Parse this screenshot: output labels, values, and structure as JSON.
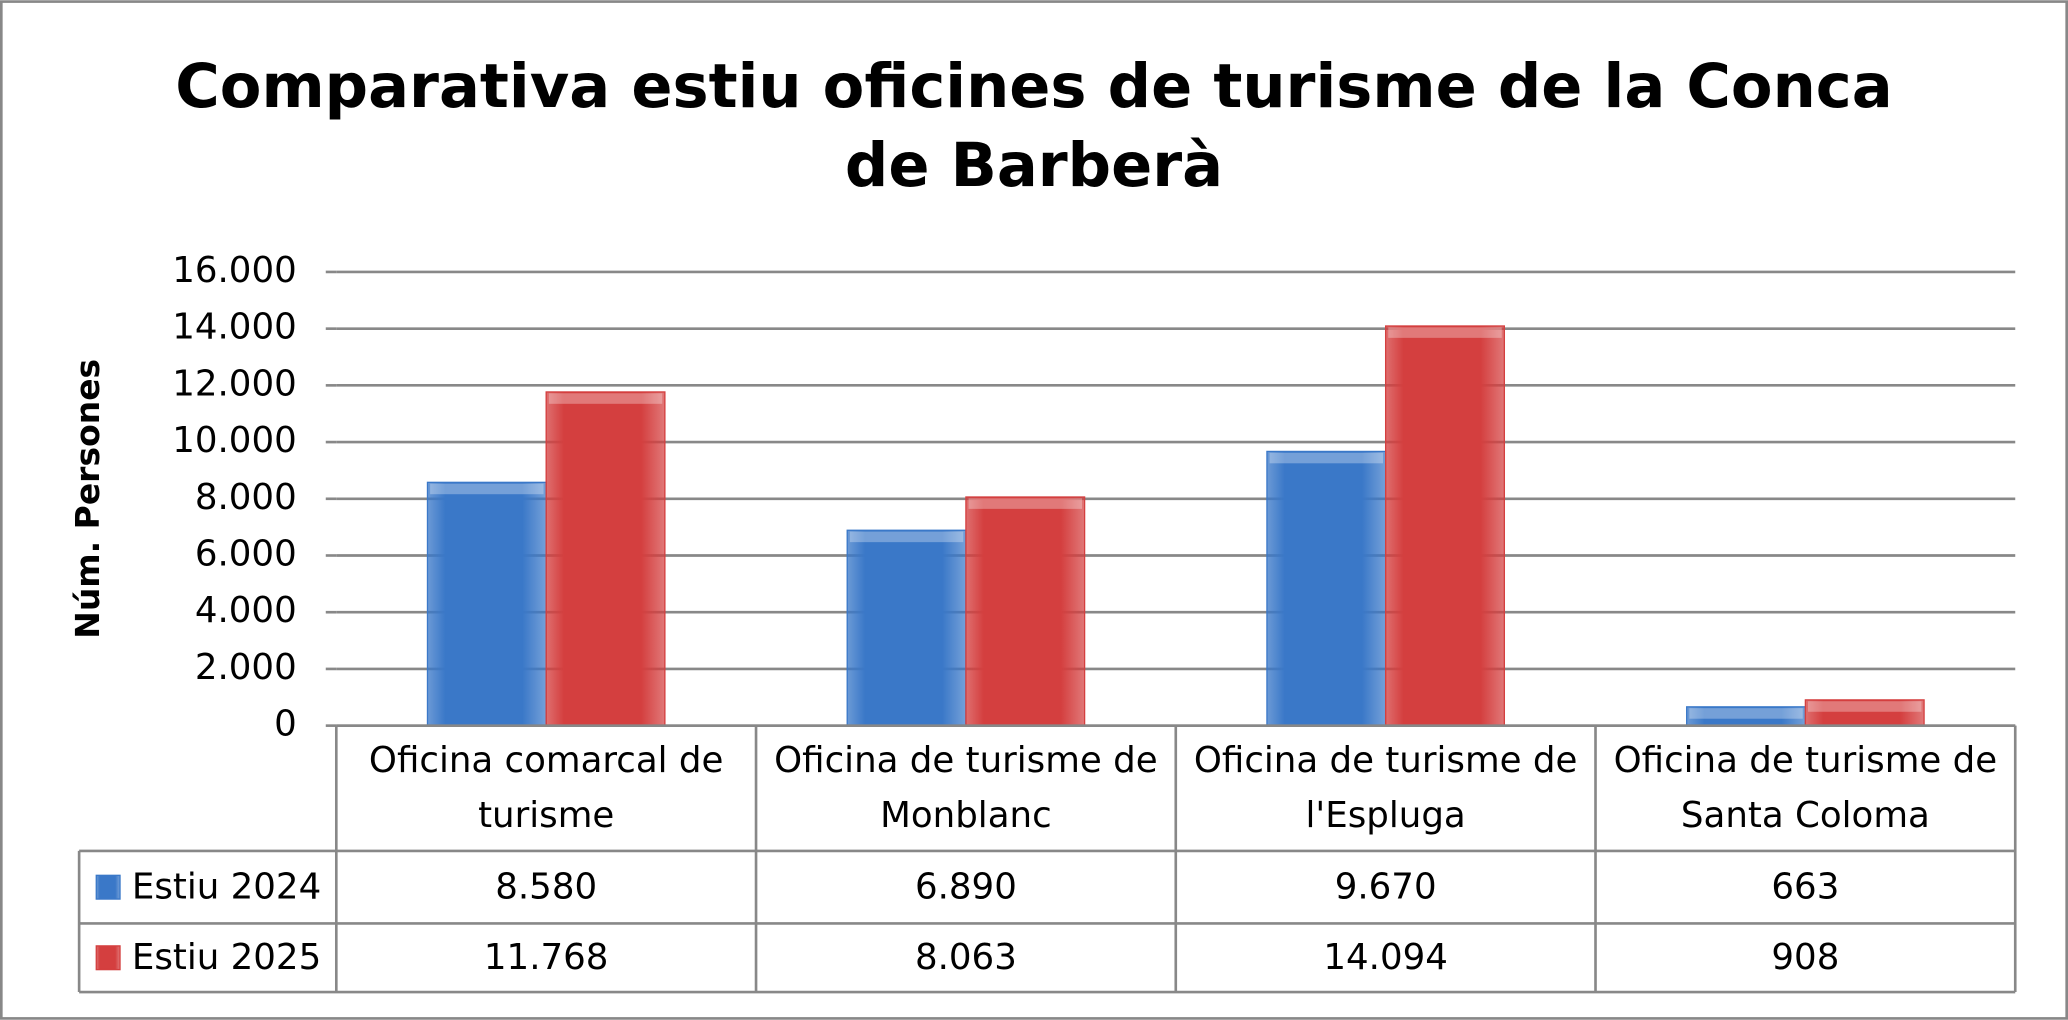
{
  "chart_data": {
    "type": "bar",
    "title": "Comparativa estiu oficines de turisme de la Conca de Barberà",
    "y_label": "Núm. Persones",
    "categories": [
      "Oficina comarcal de turisme",
      "Oficina de turisme de Monblanc",
      "Oficina de turisme de l'Espluga",
      "Oficina de turisme de Santa Coloma"
    ],
    "series": [
      {
        "name": "Estiu 2024",
        "color": "#3a78c8",
        "values": [
          8580,
          6890,
          9670,
          663
        ],
        "value_labels": [
          "8.580",
          "6.890",
          "9.670",
          "663"
        ]
      },
      {
        "name": "Estiu 2025",
        "color": "#d43f3f",
        "values": [
          11768,
          8063,
          14094,
          908
        ],
        "value_labels": [
          "11.768",
          "8.063",
          "14.094",
          "908"
        ]
      }
    ],
    "ylim": [
      0,
      16000
    ],
    "yticks": [
      0,
      {
        "value": 2000,
        "label": "2.000"
      },
      {
        "value": 4000,
        "label": "4.000"
      },
      {
        "value": 6000,
        "label": "6.000"
      },
      {
        "value": 8000,
        "label": "8.000"
      },
      {
        "value": 10000,
        "label": "10.000"
      },
      {
        "value": 12000,
        "label": "12.000"
      },
      {
        "value": 14000,
        "label": "14.000"
      },
      {
        "value": 16000,
        "label": "16.000"
      }
    ],
    "grid": true
  }
}
